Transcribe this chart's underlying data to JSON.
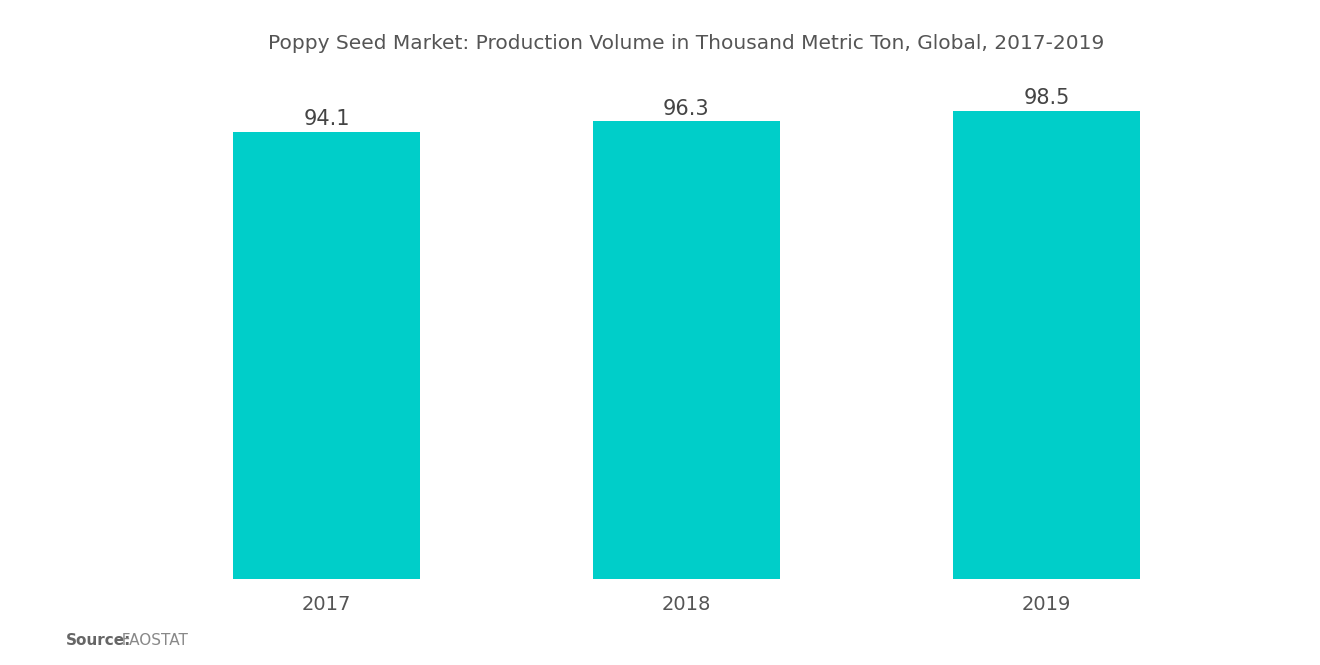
{
  "title": "Poppy Seed Market: Production Volume in Thousand Metric Ton, Global, 2017-2019",
  "categories": [
    "2017",
    "2018",
    "2019"
  ],
  "values": [
    94.1,
    96.3,
    98.5
  ],
  "bar_color": "#00CEC9",
  "bar_width": 0.52,
  "value_label_fontsize": 15,
  "title_fontsize": 14.5,
  "xlabel_fontsize": 14,
  "source_bold": "Source:",
  "source_normal": "  FAOSTAT",
  "source_fontsize": 11,
  "background_color": "#ffffff",
  "ylim_min": 0,
  "ylim_max": 105,
  "title_color": "#555555",
  "label_color": "#555555",
  "value_color": "#444444"
}
